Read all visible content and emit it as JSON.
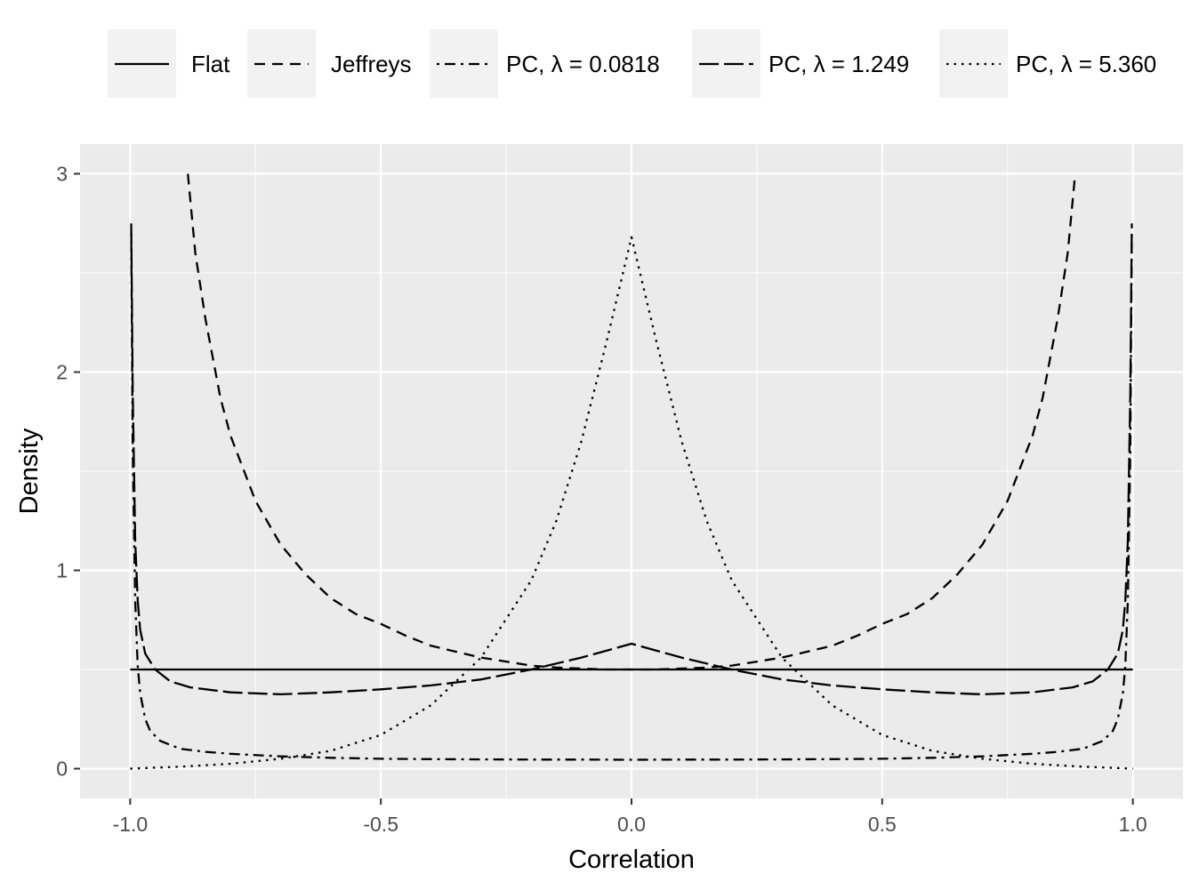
{
  "chart_data": {
    "type": "line",
    "xlabel": "Correlation",
    "ylabel": "Density",
    "xlim": [
      -1.1,
      1.1
    ],
    "ylim": [
      -0.15,
      3.15
    ],
    "x_ticks": [
      {
        "value": -1.0,
        "label": "-1.0"
      },
      {
        "value": -0.5,
        "label": "-0.5"
      },
      {
        "value": 0.0,
        "label": "0.0"
      },
      {
        "value": 0.5,
        "label": "0.5"
      },
      {
        "value": 1.0,
        "label": "1.0"
      }
    ],
    "y_ticks": [
      {
        "value": 0,
        "label": "0"
      },
      {
        "value": 1,
        "label": "1"
      },
      {
        "value": 2,
        "label": "2"
      },
      {
        "value": 3,
        "label": "3"
      }
    ],
    "grid": true,
    "legend_position": "top",
    "background": "#ebebeb",
    "gridline_color": "#ffffff",
    "series": [
      {
        "name": "Flat",
        "linetype": "solid",
        "x": [
          -1.0,
          1.0
        ],
        "y": [
          0.5,
          0.5
        ]
      },
      {
        "name": "Jeffreys",
        "linetype": "dashed",
        "x": [
          -0.885,
          -0.87,
          -0.85,
          -0.82,
          -0.8,
          -0.75,
          -0.7,
          -0.65,
          -0.6,
          -0.55,
          -0.5,
          -0.45,
          -0.4,
          -0.35,
          -0.3,
          -0.25,
          -0.2,
          -0.15,
          -0.1,
          -0.05,
          0.0,
          0.05,
          0.1,
          0.15,
          0.2,
          0.25,
          0.3,
          0.35,
          0.4,
          0.45,
          0.5,
          0.55,
          0.6,
          0.65,
          0.7,
          0.75,
          0.8,
          0.82,
          0.85,
          0.87,
          0.885
        ],
        "y": [
          3.0,
          2.6,
          2.27,
          1.87,
          1.68,
          1.35,
          1.13,
          0.98,
          0.86,
          0.78,
          0.73,
          0.67,
          0.62,
          0.59,
          0.56,
          0.54,
          0.52,
          0.51,
          0.505,
          0.5,
          0.5,
          0.5,
          0.505,
          0.51,
          0.52,
          0.54,
          0.56,
          0.59,
          0.62,
          0.67,
          0.73,
          0.78,
          0.86,
          0.98,
          1.13,
          1.35,
          1.68,
          1.87,
          2.27,
          2.6,
          3.0
        ]
      },
      {
        "name": "PC, λ = 0.0818",
        "linetype": "dotdash",
        "x": [
          -0.998,
          -0.995,
          -0.99,
          -0.985,
          -0.98,
          -0.97,
          -0.96,
          -0.94,
          -0.9,
          -0.85,
          -0.8,
          -0.7,
          -0.6,
          -0.5,
          -0.4,
          -0.3,
          -0.2,
          -0.1,
          0.0,
          0.1,
          0.2,
          0.3,
          0.4,
          0.5,
          0.6,
          0.7,
          0.8,
          0.85,
          0.9,
          0.94,
          0.96,
          0.97,
          0.98,
          0.985,
          0.99,
          0.995,
          0.998
        ],
        "y": [
          2.7,
          1.6,
          0.85,
          0.52,
          0.38,
          0.25,
          0.19,
          0.14,
          0.1,
          0.085,
          0.075,
          0.062,
          0.055,
          0.05,
          0.048,
          0.047,
          0.046,
          0.046,
          0.045,
          0.046,
          0.046,
          0.047,
          0.048,
          0.05,
          0.055,
          0.062,
          0.075,
          0.085,
          0.1,
          0.14,
          0.19,
          0.25,
          0.38,
          0.52,
          0.85,
          1.6,
          2.7
        ]
      },
      {
        "name": "PC, λ = 1.249",
        "linetype": "longdash",
        "x": [
          -0.998,
          -0.995,
          -0.99,
          -0.985,
          -0.98,
          -0.97,
          -0.95,
          -0.92,
          -0.88,
          -0.8,
          -0.7,
          -0.6,
          -0.5,
          -0.4,
          -0.3,
          -0.2,
          -0.1,
          0.0,
          0.1,
          0.2,
          0.3,
          0.4,
          0.5,
          0.6,
          0.7,
          0.8,
          0.88,
          0.92,
          0.95,
          0.97,
          0.98,
          0.985,
          0.99,
          0.995,
          0.998
        ],
        "y": [
          2.75,
          1.9,
          1.15,
          0.85,
          0.7,
          0.58,
          0.5,
          0.44,
          0.41,
          0.385,
          0.375,
          0.385,
          0.4,
          0.42,
          0.45,
          0.5,
          0.56,
          0.63,
          0.56,
          0.5,
          0.45,
          0.42,
          0.4,
          0.385,
          0.375,
          0.385,
          0.41,
          0.44,
          0.5,
          0.58,
          0.7,
          0.85,
          1.15,
          1.9,
          2.75
        ]
      },
      {
        "name": "PC, λ = 5.360",
        "linetype": "dotted",
        "x": [
          -1.0,
          -0.9,
          -0.8,
          -0.7,
          -0.6,
          -0.5,
          -0.4,
          -0.3,
          -0.2,
          -0.15,
          -0.1,
          -0.05,
          0.0,
          0.05,
          0.1,
          0.15,
          0.2,
          0.3,
          0.4,
          0.5,
          0.6,
          0.7,
          0.8,
          0.9,
          1.0
        ],
        "y": [
          0.0,
          0.01,
          0.025,
          0.05,
          0.09,
          0.17,
          0.32,
          0.56,
          0.95,
          1.25,
          1.65,
          2.15,
          2.68,
          2.15,
          1.65,
          1.25,
          0.95,
          0.56,
          0.32,
          0.17,
          0.09,
          0.05,
          0.025,
          0.01,
          0.0
        ]
      }
    ]
  }
}
